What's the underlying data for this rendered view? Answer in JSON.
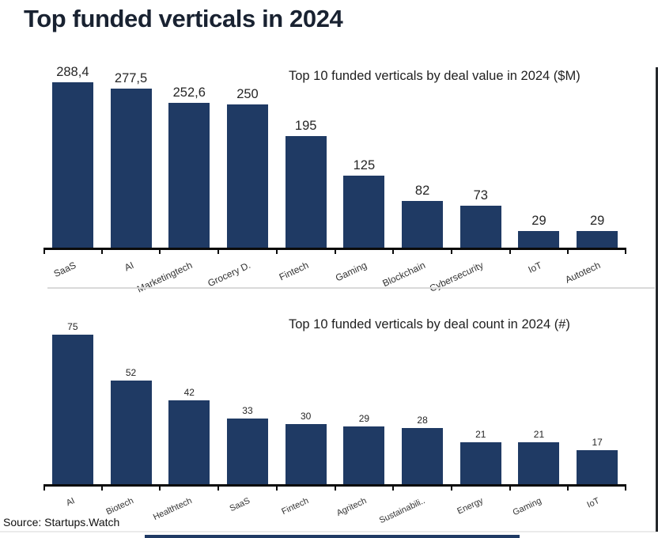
{
  "page": {
    "title": "Top funded verticals in 2024",
    "source": "Source: Startups.Watch"
  },
  "colors": {
    "bar": "#1f3a64",
    "title_text": "#192231",
    "axis": "#0a0a0a",
    "divider": "#d9d9d9"
  },
  "chart_data": [
    {
      "type": "bar",
      "title": "Top 10 funded verticals by deal value in 2024 ($M)",
      "categories": [
        "SaaS",
        "AI",
        "Marketingtech",
        "Grocery D.",
        "Fintech",
        "Gaming",
        "Blockchain",
        "Cybersecurity",
        "IoT",
        "Autotech"
      ],
      "values": [
        288.4,
        277.5,
        252.6,
        250,
        195,
        125,
        82,
        73,
        29,
        29
      ],
      "value_labels": [
        "288,4",
        "277,5",
        "252,6",
        "250",
        "195",
        "125",
        "82",
        "73",
        "29",
        "29"
      ],
      "xlabel": "",
      "ylabel": "",
      "ylim": [
        0,
        300
      ],
      "grid": false,
      "legend": false,
      "bar_color": "#1f3a64"
    },
    {
      "type": "bar",
      "title": "Top 10 funded verticals by deal count in 2024 (#)",
      "categories": [
        "AI",
        "Biotech",
        "Healthtech",
        "SaaS",
        "Fintech",
        "Agritech",
        "Sustainabili..",
        "Energy",
        "Gaming",
        "IoT"
      ],
      "values": [
        75,
        52,
        42,
        33,
        30,
        29,
        28,
        21,
        21,
        17
      ],
      "value_labels": [
        "75",
        "52",
        "42",
        "33",
        "30",
        "29",
        "28",
        "21",
        "21",
        "17"
      ],
      "xlabel": "",
      "ylabel": "",
      "ylim": [
        0,
        80
      ],
      "grid": false,
      "legend": false,
      "bar_color": "#1f3a64"
    }
  ]
}
